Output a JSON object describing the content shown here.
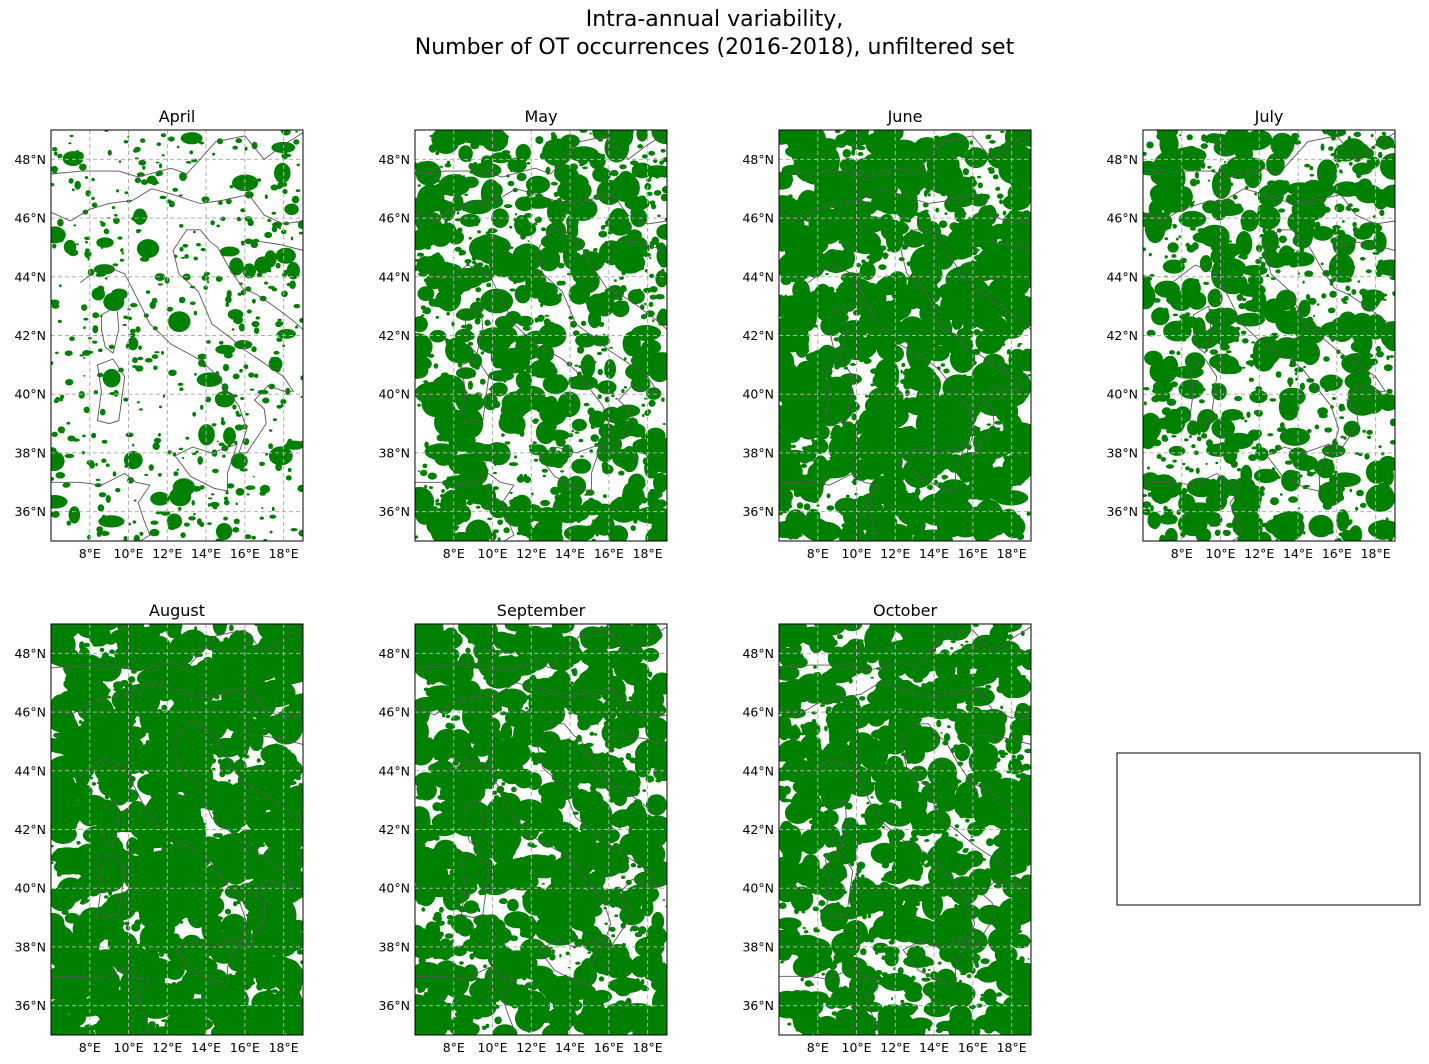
{
  "figure": {
    "title_line1": "Intra-annual variability,",
    "title_line2": "Number of OT occurrences (2016-2018), unfiltered set"
  },
  "colors": {
    "occurrence": "#008000",
    "coastline": "#555555",
    "border": "#333333",
    "grid": "#b0b0b0",
    "frame": "#000000"
  },
  "map": {
    "lon_range": [
      6.0,
      19.0
    ],
    "lat_range": [
      35.0,
      49.0
    ],
    "lon_ticks": [
      "8°E",
      "10°E",
      "12°E",
      "14°E",
      "16°E",
      "18°E"
    ],
    "lon_tick_values": [
      8,
      10,
      12,
      14,
      16,
      18
    ],
    "lat_ticks": [
      "36°N",
      "38°N",
      "40°N",
      "42°N",
      "44°N",
      "46°N",
      "48°N"
    ],
    "lat_tick_values": [
      36,
      38,
      40,
      42,
      44,
      46,
      48
    ],
    "gridlines": "dashed"
  },
  "panels": [
    {
      "month": "April",
      "density": 0.22
    },
    {
      "month": "May",
      "density": 0.55
    },
    {
      "month": "June",
      "density": 0.72
    },
    {
      "month": "July",
      "density": 0.5
    },
    {
      "month": "August",
      "density": 0.82
    },
    {
      "month": "September",
      "density": 0.7
    },
    {
      "month": "October",
      "density": 0.68
    }
  ],
  "empty_panel": {
    "label": ""
  }
}
